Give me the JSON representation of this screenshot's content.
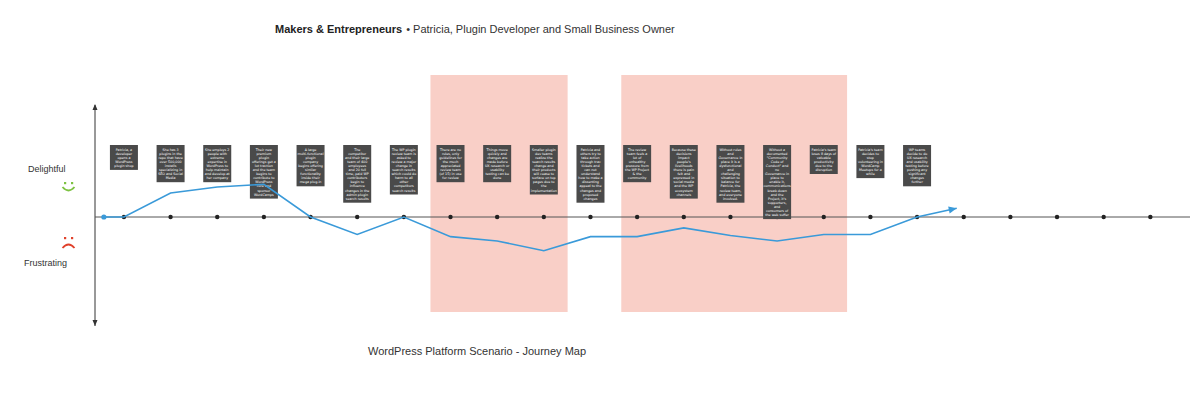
{
  "chart_data": {
    "type": "line",
    "title": "Makers & Entrepreneurs",
    "subtitle": "• Patricia, Plugin Developer and Small Business Owner",
    "caption": "WordPress Platform Scenario - Journey Map",
    "ylabel_top": "Delightful",
    "ylabel_bottom": "Frustrating",
    "tick_labels": false,
    "grid": false,
    "xlim": [
      -0.62,
      22.85
    ],
    "ylim": [
      -10,
      10
    ],
    "xticks": [
      0,
      1,
      2,
      3,
      4,
      5,
      6,
      7,
      8,
      9,
      10,
      11,
      12,
      13,
      14,
      15,
      16,
      17,
      18,
      19,
      20,
      21,
      22
    ],
    "x": [
      -0.43,
      0,
      1,
      2,
      3,
      4,
      5,
      6,
      7,
      8,
      9,
      10,
      11,
      12,
      13,
      14,
      15,
      16,
      17,
      17.85
    ],
    "series": [
      {
        "name": "Patricia",
        "color": "#3a9ad9",
        "values": [
          0,
          0,
          2.2,
          2.75,
          3.0,
          0,
          -1.6,
          0,
          -1.8,
          -2.2,
          -3.1,
          -1.8,
          -1.8,
          -1.0,
          -1.7,
          -2.2,
          -1.6,
          -1.6,
          0,
          0.8
        ]
      }
    ],
    "highlight_ranges": [
      {
        "x0": 6.57,
        "x1": 9.51,
        "color": "#f9cfc7"
      },
      {
        "x0": 10.66,
        "x1": 15.5,
        "color": "#f9cfc7"
      }
    ],
    "annotations": [
      {
        "x": 0,
        "text": "Patricia, a developer opens a WordPress plugin shop"
      },
      {
        "x": 1,
        "text": "She has 3 plugins in the repo that have over 500,000 installs specializing in SEO and Social Media"
      },
      {
        "x": 2,
        "text": "She employs 2 people with extreme expertise in WordPress to help maintain and develop at her company"
      },
      {
        "x": 3,
        "text": "Their new premium plugin offerings get a lot traction and the team begins to contribute to WordPress core and sponsor WordCamps"
      },
      {
        "x": 4,
        "text": "A large multi-functional plugin company begins offering similar functionality inside their mega plug-in"
      },
      {
        "x": 5,
        "text": "The competitor and their large team of 400 employees and 20 full time, paid WP contributors begin to influence changes in the admin plugin search results"
      },
      {
        "x": 6,
        "text": "The WP plugin review team is asked to review a major change in search results which could do harm to all other competitors search results"
      },
      {
        "x": 7,
        "text": "There are no rules, only guidelines for the much appreciated review team (of 15) in use for review"
      },
      {
        "x": 8,
        "text": "Things move quickly and changes are made before UX research or usability testing can be done"
      },
      {
        "x": 9,
        "text": "Smaller plugin dev teams realize the search results change and their products will cease to surface on top pages due to the implementation"
      },
      {
        "x": 10,
        "text": "Patricia and others try to take action through trac tickets and can not understand how to make a dissenting appeal to the changes and proposed changes"
      },
      {
        "x": 11,
        "text": "The review team feels a lot of unhealthy pressure from the WP Project & the community"
      },
      {
        "x": 12,
        "text": "Because these decisions impact people's livelihoods there is pain felt and expressed in social media and the WP ecosystem channels"
      },
      {
        "x": 13,
        "text": "Without rules and Governance in place it is a dysfunctional and challenging situation to balance for Patricia, the review team, and everyone involved."
      },
      {
        "x": 14,
        "text": "Without a documented \"Community Code of Conduct\" and no Governance in place to enable it, communications break down and the Project, it's supporters, and consumers of the web suffer"
      },
      {
        "x": 15,
        "text": "Patricia's team loses 8 days of valuable productivity due to the disruption"
      },
      {
        "x": 16,
        "text": "Patricia's team decides to stop volunteering in WordCamp Meetups for a while"
      },
      {
        "x": 17,
        "text": "WP teams decide to do UX research and usability testing before pushing any significant changes further"
      }
    ]
  }
}
